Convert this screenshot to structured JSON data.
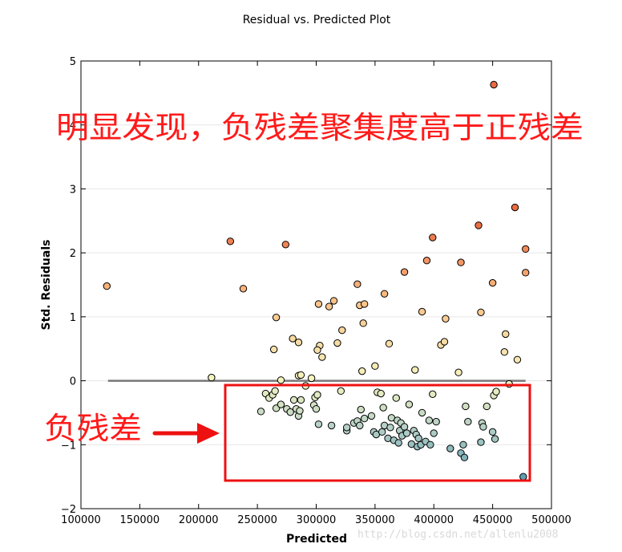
{
  "chart_data": {
    "type": "scatter",
    "title": "Residual vs. Predicted Plot",
    "xlabel": "Predicted",
    "ylabel": "Std. Residuals",
    "xlim": [
      100000,
      500000
    ],
    "ylim": [
      -2,
      5
    ],
    "xticks": [
      100000,
      150000,
      200000,
      250000,
      300000,
      350000,
      400000,
      450000,
      500000
    ],
    "yticks": [
      -2,
      -1,
      0,
      1,
      2,
      3,
      4,
      5
    ],
    "xtick_labels": [
      "100000",
      "150000",
      "200000",
      "250000",
      "300000",
      "350000",
      "400000",
      "450000",
      "500000"
    ],
    "ytick_labels": [
      "−2",
      "−1",
      "0",
      "1",
      "2",
      "3",
      "4",
      "5"
    ],
    "grid": "horizontal",
    "zero_line": {
      "y": 0,
      "x_from": 123000,
      "x_to": 478000,
      "color": "#777777"
    },
    "colormap": [
      "#5f9fb0",
      "#b4cfc6",
      "#f4f4c0",
      "#fbc489",
      "#ea6a41"
    ],
    "points": [
      [
        122000,
        1.48
      ],
      [
        227000,
        2.18
      ],
      [
        238000,
        1.44
      ],
      [
        274000,
        2.13
      ],
      [
        266000,
        0.99
      ],
      [
        264000,
        0.49
      ],
      [
        280000,
        0.66
      ],
      [
        285000,
        0.6
      ],
      [
        302000,
        1.2
      ],
      [
        311000,
        1.16
      ],
      [
        315000,
        1.25
      ],
      [
        303000,
        0.55
      ],
      [
        301000,
        0.48
      ],
      [
        305000,
        0.37
      ],
      [
        318000,
        0.59
      ],
      [
        322000,
        0.79
      ],
      [
        335000,
        1.51
      ],
      [
        337000,
        1.18
      ],
      [
        341000,
        1.2
      ],
      [
        340000,
        0.9
      ],
      [
        358000,
        1.36
      ],
      [
        362000,
        0.58
      ],
      [
        375000,
        1.7
      ],
      [
        394000,
        1.88
      ],
      [
        399000,
        2.24
      ],
      [
        390000,
        1.08
      ],
      [
        406000,
        0.56
      ],
      [
        409000,
        0.61
      ],
      [
        410000,
        0.97
      ],
      [
        423000,
        1.85
      ],
      [
        438000,
        2.43
      ],
      [
        450000,
        1.53
      ],
      [
        451000,
        4.63
      ],
      [
        440000,
        1.07
      ],
      [
        461000,
        0.73
      ],
      [
        460000,
        0.45
      ],
      [
        469000,
        2.71
      ],
      [
        471000,
        0.33
      ],
      [
        478000,
        2.06
      ],
      [
        478000,
        1.69
      ],
      [
        211000,
        0.05
      ],
      [
        270000,
        0.01
      ],
      [
        285000,
        0.08
      ],
      [
        287000,
        0.09
      ],
      [
        296000,
        0.04
      ],
      [
        339000,
        0.15
      ],
      [
        350000,
        0.23
      ],
      [
        384000,
        0.17
      ],
      [
        421000,
        0.13
      ],
      [
        464000,
        -0.05
      ],
      [
        253000,
        -0.48
      ],
      [
        257000,
        -0.2
      ],
      [
        260000,
        -0.27
      ],
      [
        263000,
        -0.22
      ],
      [
        265000,
        -0.16
      ],
      [
        266000,
        -0.43
      ],
      [
        270000,
        -0.37
      ],
      [
        275000,
        -0.44
      ],
      [
        278000,
        -0.49
      ],
      [
        281000,
        -0.3
      ],
      [
        283000,
        -0.44
      ],
      [
        285000,
        -0.55
      ],
      [
        286000,
        -0.47
      ],
      [
        287000,
        -0.3
      ],
      [
        291000,
        -0.08
      ],
      [
        298000,
        -0.38
      ],
      [
        299000,
        -0.26
      ],
      [
        300000,
        -0.44
      ],
      [
        301000,
        -0.22
      ],
      [
        302000,
        -0.68
      ],
      [
        313000,
        -0.7
      ],
      [
        321000,
        -0.16
      ],
      [
        326000,
        -0.78
      ],
      [
        326000,
        -0.73
      ],
      [
        332000,
        -0.66
      ],
      [
        335000,
        -0.63
      ],
      [
        337000,
        -0.7
      ],
      [
        338000,
        -0.45
      ],
      [
        341000,
        -0.59
      ],
      [
        347000,
        -0.55
      ],
      [
        349000,
        -0.8
      ],
      [
        351000,
        -0.84
      ],
      [
        352000,
        -0.18
      ],
      [
        355000,
        -0.2
      ],
      [
        356000,
        -0.8
      ],
      [
        357000,
        -0.42
      ],
      [
        358000,
        -0.7
      ],
      [
        361000,
        -0.9
      ],
      [
        363000,
        -0.73
      ],
      [
        364000,
        -0.58
      ],
      [
        366000,
        -0.93
      ],
      [
        368000,
        -0.27
      ],
      [
        369000,
        -0.62
      ],
      [
        370000,
        -0.97
      ],
      [
        371000,
        -0.78
      ],
      [
        372000,
        -0.66
      ],
      [
        373000,
        -0.86
      ],
      [
        375000,
        -0.72
      ],
      [
        377000,
        -0.82
      ],
      [
        379000,
        -0.37
      ],
      [
        381000,
        -0.99
      ],
      [
        383000,
        -0.78
      ],
      [
        385000,
        -0.84
      ],
      [
        386000,
        -1.03
      ],
      [
        387000,
        -0.9
      ],
      [
        389000,
        -1.0
      ],
      [
        390000,
        -0.5
      ],
      [
        393000,
        -0.95
      ],
      [
        396000,
        -0.62
      ],
      [
        397000,
        -1.0
      ],
      [
        399000,
        -0.21
      ],
      [
        400000,
        -0.82
      ],
      [
        402000,
        -0.64
      ],
      [
        414000,
        -1.06
      ],
      [
        423000,
        -1.13
      ],
      [
        425000,
        -1.0
      ],
      [
        426000,
        -1.2
      ],
      [
        427000,
        -0.4
      ],
      [
        429000,
        -0.64
      ],
      [
        440000,
        -0.96
      ],
      [
        441000,
        -0.66
      ],
      [
        442000,
        -0.72
      ],
      [
        445000,
        -0.4
      ],
      [
        450000,
        -0.8
      ],
      [
        451000,
        -0.23
      ],
      [
        452000,
        -0.91
      ],
      [
        453000,
        -0.17
      ],
      [
        476000,
        -1.5
      ]
    ]
  },
  "annotations": {
    "headline": "明显发现，负残差聚集度高于正残差",
    "negative_label": "负残差"
  },
  "watermark": "http://blog.csdn.net/allenlu2008"
}
